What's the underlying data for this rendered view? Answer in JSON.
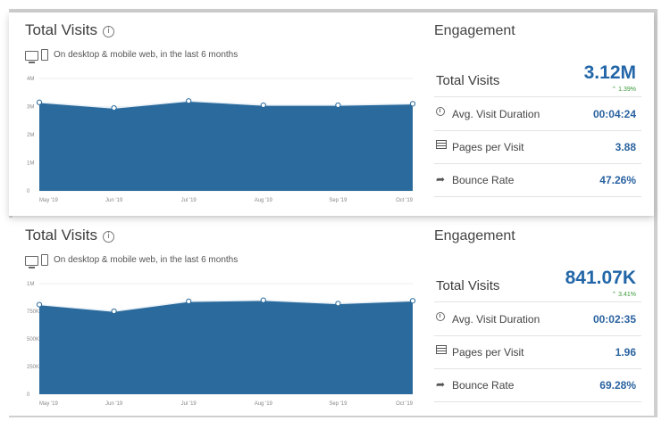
{
  "colors": {
    "area_fill": "#2a6a9c",
    "area_line": "#ffffff",
    "value_blue": "#2266a8",
    "change_green": "#3a9a3a"
  },
  "panels": [
    {
      "title": "Total Visits",
      "subtitle": "On desktop & mobile web, in the last 6 months",
      "engagement": {
        "title": "Engagement",
        "total_visits_label": "Total Visits",
        "total_visits_value": "3.12M",
        "change": "1.39%",
        "rows": [
          {
            "icon": "clock-icon",
            "label": "Avg. Visit Duration",
            "value": "00:04:24"
          },
          {
            "icon": "pages-icon",
            "label": "Pages per Visit",
            "value": "3.88"
          },
          {
            "icon": "share-arrow-icon",
            "label": "Bounce Rate",
            "value": "47.26%"
          }
        ]
      }
    },
    {
      "title": "Total Visits",
      "subtitle": "On desktop & mobile web, in the last 6 months",
      "engagement": {
        "title": "Engagement",
        "total_visits_label": "Total Visits",
        "total_visits_value": "841.07K",
        "change": "3.41%",
        "rows": [
          {
            "icon": "clock-icon",
            "label": "Avg. Visit Duration",
            "value": "00:02:35"
          },
          {
            "icon": "pages-icon",
            "label": "Pages per Visit",
            "value": "1.96"
          },
          {
            "icon": "share-arrow-icon",
            "label": "Bounce Rate",
            "value": "69.28%"
          }
        ]
      }
    }
  ],
  "chart_data": [
    {
      "type": "area",
      "categories": [
        "May '19",
        "Jun '19",
        "Jul '19",
        "Aug '19",
        "Sep '19",
        "Oct '19"
      ],
      "values": [
        3.15,
        2.95,
        3.2,
        3.05,
        3.05,
        3.1
      ],
      "y_ticks": [
        "0",
        "1M",
        "2M",
        "3M",
        "4M"
      ],
      "ylim": [
        0,
        4
      ],
      "grid": true
    },
    {
      "type": "area",
      "categories": [
        "May '19",
        "Jun '19",
        "Jul '19",
        "Aug '19",
        "Sep '19",
        "Oct '19"
      ],
      "values": [
        810000,
        750000,
        840000,
        850000,
        820000,
        845000
      ],
      "y_ticks": [
        "0",
        "250K",
        "500K",
        "750K",
        "1M"
      ],
      "ylim": [
        0,
        1000000
      ],
      "grid": true
    }
  ]
}
